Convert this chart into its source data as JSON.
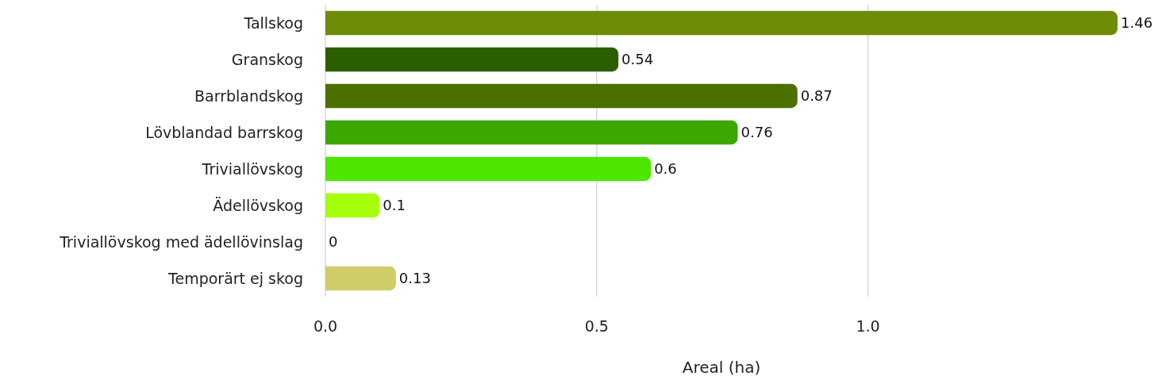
{
  "chart_data": {
    "type": "bar",
    "orientation": "horizontal",
    "xlabel": "Areal (ha)",
    "categories": [
      "Tallskog",
      "Granskog",
      "Barrblandskog",
      "Lövblandad barrskog",
      "Triviallövskog",
      "Ädellövskog",
      "Triviallövskog med ädellövinslag",
      "Temporärt ej skog"
    ],
    "values": [
      1.46,
      0.54,
      0.87,
      0.76,
      0.6,
      0.1,
      0,
      0.13
    ],
    "colors": [
      "#6e8c06",
      "#2a5e00",
      "#4c7000",
      "#3aa800",
      "#4ee600",
      "#a6ff0a",
      "#8fbf3f",
      "#cfcd69"
    ],
    "xlim": [
      0,
      1.46
    ],
    "xticks": [
      {
        "value": 0,
        "label": "0.0"
      },
      {
        "value": 0.5,
        "label": "0.5"
      },
      {
        "value": 1,
        "label": "1.0"
      }
    ],
    "grid": "x",
    "data_labels": true
  }
}
